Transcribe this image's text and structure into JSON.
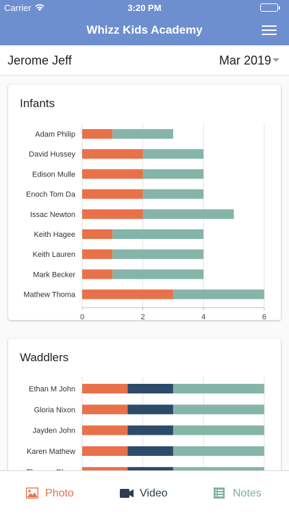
{
  "status_bar": {
    "carrier": "Carrier",
    "time": "3:20 PM"
  },
  "nav": {
    "title": "Whizz Kids Academy",
    "menu_icon": "hamburger-icon"
  },
  "filter": {
    "student": "Jerome Jeff",
    "month": "Mar 2019"
  },
  "colors": {
    "header": "#6d8fd0",
    "orange": "#e8714a",
    "navy": "#2d4a6b",
    "teal": "#85b5a8",
    "active_tab": "#e8714a",
    "video_tab": "#2c3e50",
    "notes_tab": "#7fb0a3"
  },
  "chart_data": [
    {
      "type": "bar",
      "orientation": "horizontal",
      "stacked": true,
      "title": "Infants",
      "categories": [
        "Adam Philip",
        "David Hussey",
        "Edison Mulle",
        "Enoch Tom Da",
        "Issac Newton",
        "Keith Hagee",
        "Keith Lauren",
        "Mark Becker",
        "Mathew Thoma"
      ],
      "series": [
        {
          "color": "#e8714a",
          "values": [
            1,
            2,
            2,
            2,
            2,
            1,
            1,
            1,
            3
          ]
        },
        {
          "color": "#85b5a8",
          "values": [
            2,
            2,
            2,
            2,
            3,
            3,
            3,
            3,
            3
          ]
        }
      ],
      "xlim": [
        0,
        6
      ],
      "xticks": [
        "0",
        "2",
        "4",
        "6"
      ],
      "grid": true
    },
    {
      "type": "bar",
      "orientation": "horizontal",
      "stacked": true,
      "title": "Waddlers",
      "categories": [
        "Ethan M John",
        "Gloria Nixon",
        "Jayden John",
        "Karen Mathew",
        "Thomas Olans"
      ],
      "series": [
        {
          "color": "#e8714a",
          "values": [
            1.5,
            1.5,
            1.5,
            1.5,
            1.5
          ]
        },
        {
          "color": "#2d4a6b",
          "values": [
            1.5,
            1.5,
            1.5,
            1.5,
            1.5
          ]
        },
        {
          "color": "#85b5a8",
          "values": [
            3,
            3,
            3,
            3,
            3
          ]
        }
      ],
      "xlim": [
        0,
        6
      ],
      "grid": true
    }
  ],
  "tabs": [
    {
      "label": "Photo",
      "icon": "photo-icon",
      "active": true
    },
    {
      "label": "Video",
      "icon": "video-camera-icon",
      "active": false
    },
    {
      "label": "Notes",
      "icon": "notes-list-icon",
      "active": false
    }
  ]
}
